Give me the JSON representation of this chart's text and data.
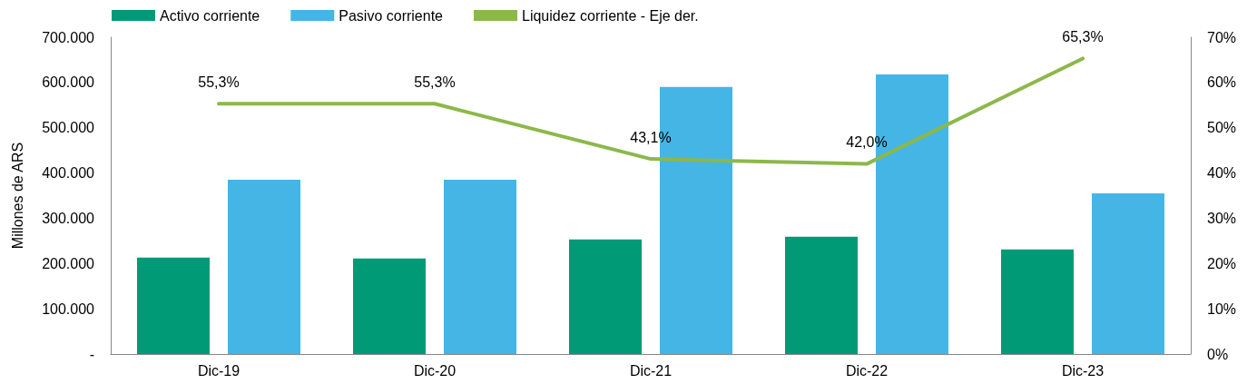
{
  "chart_data": {
    "type": "bar",
    "ylabel": "Millones de ARS",
    "categories": [
      "Dic-19",
      "Dic-20",
      "Dic-21",
      "Dic-22",
      "Dic-23"
    ],
    "series": [
      {
        "name": "Activo corriente",
        "color": "#009a76",
        "values": [
          213000,
          211000,
          253000,
          259000,
          231000
        ]
      },
      {
        "name": "Pasivo corriente",
        "color": "#45b5e5",
        "values": [
          385000,
          385000,
          590000,
          618000,
          355000
        ]
      },
      {
        "name": "Liquidez corriente - Eje der.",
        "type": "line",
        "axis": "y2",
        "color": "#8cb84a",
        "marker": "none",
        "values": [
          55.3,
          55.3,
          43.1,
          42.0,
          65.3
        ],
        "value_labels": [
          "55,3%",
          "55,3%",
          "43,1%",
          "42,0%",
          "65,3%"
        ]
      }
    ],
    "ylim": [
      0,
      700000
    ],
    "yticks": [
      {
        "value": 0,
        "label": "-"
      },
      {
        "value": 100000,
        "label": "100.000"
      },
      {
        "value": 200000,
        "label": "200.000"
      },
      {
        "value": 300000,
        "label": "300.000"
      },
      {
        "value": 400000,
        "label": "400.000"
      },
      {
        "value": 500000,
        "label": "500.000"
      },
      {
        "value": 600000,
        "label": "600.000"
      },
      {
        "value": 700000,
        "label": "700.000"
      }
    ],
    "y2lim": [
      0,
      70
    ],
    "y2ticks": [
      {
        "value": 0,
        "label": "0%"
      },
      {
        "value": 10,
        "label": "10%"
      },
      {
        "value": 20,
        "label": "20%"
      },
      {
        "value": 30,
        "label": "30%"
      },
      {
        "value": 40,
        "label": "40%"
      },
      {
        "value": 50,
        "label": "50%"
      },
      {
        "value": 60,
        "label": "60%"
      },
      {
        "value": 70,
        "label": "70%"
      }
    ],
    "grid": false,
    "legend": "top left"
  }
}
